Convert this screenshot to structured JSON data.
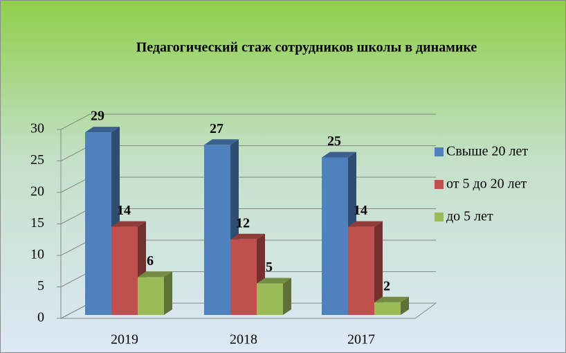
{
  "chart_data": {
    "type": "bar",
    "title": "Педагогический стаж сотрудников школы в динамике",
    "categories": [
      "2019",
      "2018",
      "2017"
    ],
    "series": [
      {
        "name": "Свыше 20 лет",
        "color": "#4f81bd",
        "values": [
          29,
          27,
          25
        ]
      },
      {
        "name": "от 5 до 20 лет",
        "color": "#c0504d",
        "values": [
          14,
          12,
          14
        ]
      },
      {
        "name": "до 5 лет",
        "color": "#9bbb59",
        "values": [
          6,
          5,
          2
        ]
      }
    ],
    "ylim": [
      0,
      30
    ],
    "yticks": [
      0,
      5,
      10,
      15,
      20,
      25,
      30
    ],
    "grid": true,
    "legend": "right"
  }
}
